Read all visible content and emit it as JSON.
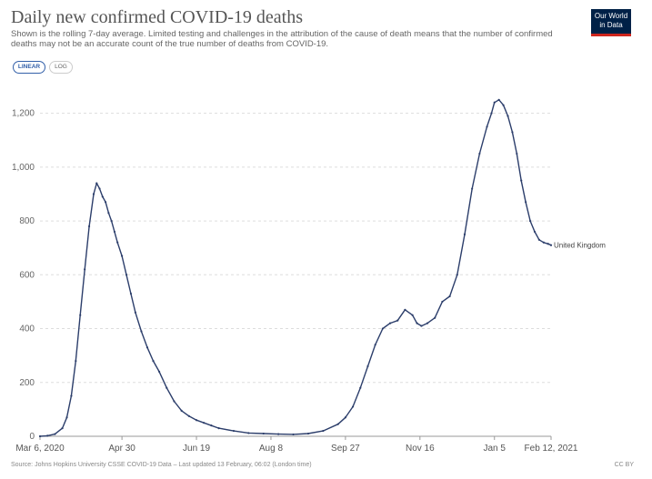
{
  "header": {
    "title": "Daily new confirmed COVID-19 deaths",
    "subtitle": "Shown is the rolling 7-day average. Limited testing and challenges in the attribution of the cause of death means that the number of confirmed deaths may not be an accurate count of the true number of deaths from COVID-19.",
    "logo_line1": "Our World",
    "logo_line2": "in Data"
  },
  "controls": {
    "linear_label": "LINEAR",
    "log_label": "LOG"
  },
  "footer": {
    "source": "Source: Johns Hopkins University CSSE COVID-19 Data – Last updated 13 February, 06:02 (London time)",
    "license": "CC BY"
  },
  "colors": {
    "line": "#2c3e6b",
    "grid": "#dddddd",
    "accent": "#3360a9"
  },
  "chart_data": {
    "type": "line",
    "title": "Daily new confirmed COVID-19 deaths",
    "xlabel": "",
    "ylabel": "",
    "ylim": [
      0,
      1300
    ],
    "yticks": [
      0,
      200,
      400,
      600,
      800,
      1000,
      1200
    ],
    "ytick_labels": [
      "0",
      "200",
      "400",
      "600",
      "800",
      "1,000",
      "1,200"
    ],
    "xticks": [
      0,
      55,
      105,
      155,
      205,
      255,
      305,
      343
    ],
    "xtick_labels": [
      "Mar 6, 2020",
      "Apr 30",
      "Jun 19",
      "Aug 8",
      "Sep 27",
      "Nov 16",
      "Jan 5",
      "Feb 12, 2021"
    ],
    "xlim": [
      0,
      343
    ],
    "series": [
      {
        "name": "United Kingdom",
        "x": [
          0,
          5,
          10,
          15,
          18,
          21,
          24,
          27,
          30,
          33,
          36,
          38,
          40,
          42,
          44,
          46,
          48,
          50,
          52,
          55,
          58,
          61,
          64,
          68,
          72,
          76,
          80,
          85,
          90,
          95,
          100,
          105,
          110,
          115,
          120,
          130,
          140,
          150,
          160,
          170,
          180,
          190,
          200,
          205,
          210,
          215,
          220,
          225,
          230,
          235,
          240,
          245,
          250,
          253,
          256,
          260,
          265,
          270,
          275,
          280,
          285,
          290,
          295,
          300,
          303,
          305,
          308,
          311,
          314,
          317,
          320,
          323,
          326,
          329,
          332,
          335,
          338,
          341,
          343
        ],
        "values": [
          0,
          2,
          8,
          30,
          70,
          150,
          280,
          450,
          620,
          780,
          900,
          940,
          920,
          890,
          870,
          830,
          800,
          760,
          720,
          670,
          600,
          530,
          460,
          390,
          330,
          280,
          240,
          180,
          130,
          95,
          75,
          60,
          50,
          40,
          30,
          20,
          12,
          10,
          8,
          7,
          10,
          20,
          45,
          70,
          110,
          180,
          260,
          340,
          400,
          420,
          430,
          470,
          450,
          420,
          410,
          420,
          440,
          500,
          520,
          600,
          750,
          920,
          1050,
          1150,
          1200,
          1240,
          1250,
          1230,
          1190,
          1130,
          1050,
          950,
          870,
          800,
          760,
          730,
          720,
          715,
          710
        ]
      }
    ]
  }
}
